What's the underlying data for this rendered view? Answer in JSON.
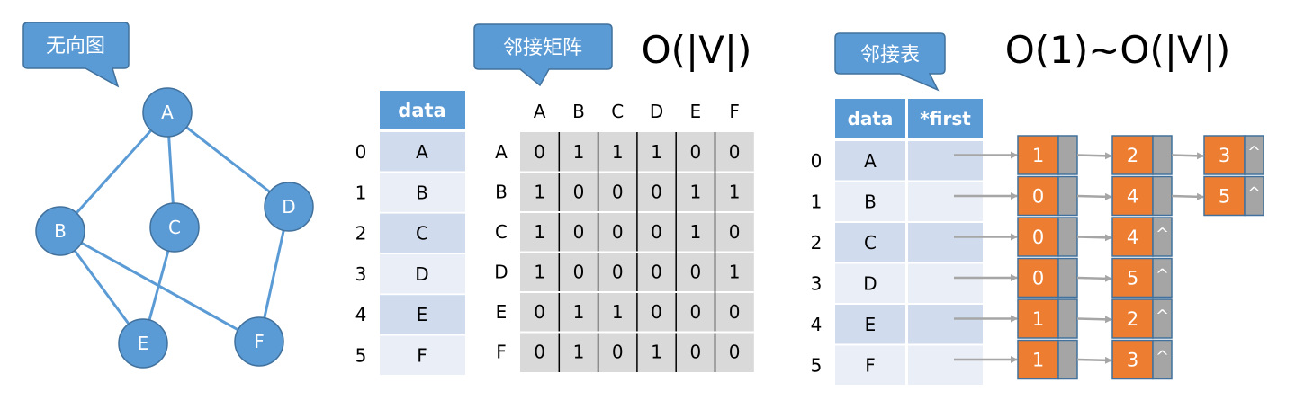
{
  "colors": {
    "accent": "#5b9bd5",
    "accent_dark": "#41719c",
    "row_dark": "#d0dcee",
    "row_light": "#e9eef7",
    "cell_gray": "#d9d9d9",
    "node_orange": "#ed7d31",
    "pointer_gray": "#a5a5a5",
    "arrow_gray": "#a6a6a6"
  },
  "graph": {
    "callout": "无向图",
    "nodes": [
      "A",
      "B",
      "C",
      "D",
      "E",
      "F"
    ],
    "edges": [
      [
        "A",
        "B"
      ],
      [
        "A",
        "C"
      ],
      [
        "A",
        "D"
      ],
      [
        "B",
        "E"
      ],
      [
        "B",
        "F"
      ],
      [
        "C",
        "E"
      ],
      [
        "D",
        "F"
      ]
    ]
  },
  "vertex_table": {
    "header": "data",
    "indices": [
      "0",
      "1",
      "2",
      "3",
      "4",
      "5"
    ],
    "values": [
      "A",
      "B",
      "C",
      "D",
      "E",
      "F"
    ]
  },
  "matrix": {
    "callout": "邻接矩阵",
    "complexity": "O(|V|)",
    "col_headers": [
      "A",
      "B",
      "C",
      "D",
      "E",
      "F"
    ],
    "row_headers": [
      "A",
      "B",
      "C",
      "D",
      "E",
      "F"
    ],
    "rows": [
      [
        "0",
        "1",
        "1",
        "1",
        "0",
        "0"
      ],
      [
        "1",
        "0",
        "0",
        "0",
        "1",
        "1"
      ],
      [
        "1",
        "0",
        "0",
        "0",
        "1",
        "0"
      ],
      [
        "1",
        "0",
        "0",
        "0",
        "0",
        "1"
      ],
      [
        "0",
        "1",
        "1",
        "0",
        "0",
        "0"
      ],
      [
        "0",
        "1",
        "0",
        "1",
        "0",
        "0"
      ]
    ]
  },
  "adj_list": {
    "callout": "邻接表",
    "complexity": "O(1)~O(|V|)",
    "headers": [
      "data",
      "*first"
    ],
    "indices": [
      "0",
      "1",
      "2",
      "3",
      "4",
      "5"
    ],
    "values": [
      "A",
      "B",
      "C",
      "D",
      "E",
      "F"
    ],
    "null_symbol": "^",
    "lists": [
      [
        "1",
        "2",
        "3"
      ],
      [
        "0",
        "4",
        "5"
      ],
      [
        "0",
        "4"
      ],
      [
        "0",
        "5"
      ],
      [
        "1",
        "2"
      ],
      [
        "1",
        "3"
      ]
    ]
  }
}
